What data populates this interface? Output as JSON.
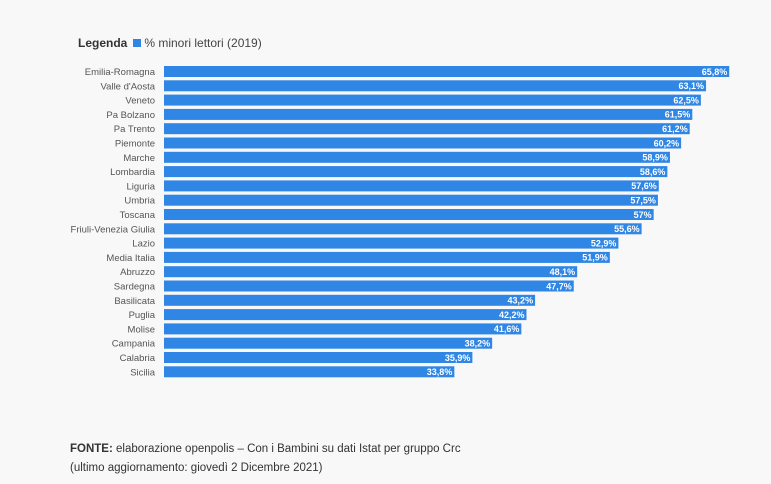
{
  "legend": {
    "title": "Legenda",
    "series_label": "% minori lettori (2019)",
    "color": "#2f86e4"
  },
  "chart_data": {
    "type": "bar",
    "orientation": "horizontal",
    "title": "",
    "xlabel": "",
    "ylabel": "",
    "legend": [
      "% minori lettori (2019)"
    ],
    "legend_position": "top-left",
    "grid": false,
    "xlim": [
      0,
      66
    ],
    "categories": [
      "Emilia-Romagna",
      "Valle d'Aosta",
      "Veneto",
      "Pa Bolzano",
      "Pa Trento",
      "Piemonte",
      "Marche",
      "Lombardia",
      "Liguria",
      "Umbria",
      "Toscana",
      "Friuli-Venezia Giulia",
      "Lazio",
      "Media Italia",
      "Abruzzo",
      "Sardegna",
      "Basilicata",
      "Puglia",
      "Molise",
      "Campania",
      "Calabria",
      "Sicilia"
    ],
    "values": [
      65.8,
      63.1,
      62.5,
      61.5,
      61.2,
      60.2,
      58.9,
      58.6,
      57.6,
      57.5,
      57,
      55.6,
      52.9,
      51.9,
      48.1,
      47.7,
      43.2,
      42.2,
      41.6,
      38.2,
      35.9,
      33.8
    ],
    "labels": [
      "65,8%",
      "63,1%",
      "62,5%",
      "61,5%",
      "61,2%",
      "60,2%",
      "58,9%",
      "58,6%",
      "57,6%",
      "57,5%",
      "57%",
      "55,6%",
      "52,9%",
      "51,9%",
      "48,1%",
      "47,7%",
      "43,2%",
      "42,2%",
      "41,6%",
      "38,2%",
      "35,9%",
      "33,8%"
    ]
  },
  "footer": {
    "source_label": "FONTE:",
    "source_text": " elaborazione openpolis – Con i Bambini su dati Istat per gruppo Crc",
    "update_text": "(ultimo aggiornamento: giovedì 2 Dicembre 2021)"
  }
}
